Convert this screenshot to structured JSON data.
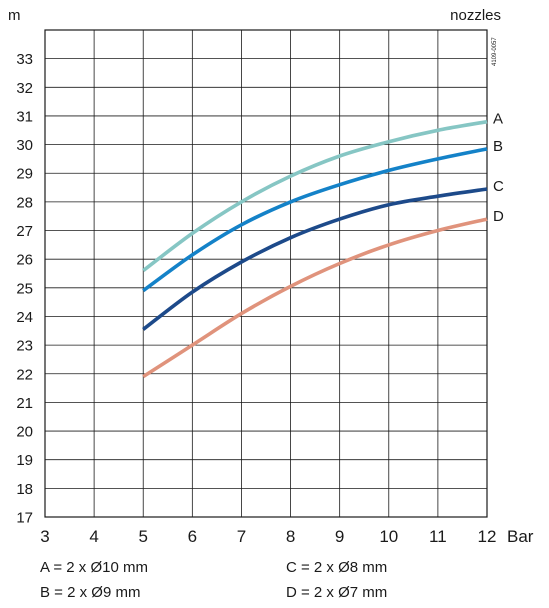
{
  "chart_data": {
    "type": "line",
    "ylabel": "m",
    "xlabel": "Bar",
    "legend_title": "nozzles",
    "code": "4109-0057",
    "xlim": [
      3,
      12
    ],
    "ylim": [
      17,
      34
    ],
    "x_ticks": [
      3,
      4,
      5,
      6,
      7,
      8,
      9,
      10,
      11,
      12
    ],
    "y_ticks": [
      17,
      18,
      19,
      20,
      21,
      22,
      23,
      24,
      25,
      26,
      27,
      28,
      29,
      30,
      31,
      32,
      33
    ],
    "grid": true,
    "series": [
      {
        "name": "A",
        "color": "#86c6c4",
        "x": [
          5,
          6,
          7,
          8,
          9,
          10,
          11,
          12
        ],
        "y": [
          25.6,
          26.9,
          28.0,
          28.9,
          29.6,
          30.1,
          30.5,
          30.8
        ]
      },
      {
        "name": "B",
        "color": "#1482c8",
        "x": [
          5,
          6,
          7,
          8,
          9,
          10,
          11,
          12
        ],
        "y": [
          24.9,
          26.15,
          27.2,
          28.0,
          28.6,
          29.1,
          29.5,
          29.85
        ]
      },
      {
        "name": "C",
        "color": "#1d4a8a",
        "x": [
          5,
          6,
          7,
          8,
          9,
          10,
          11,
          12
        ],
        "y": [
          23.55,
          24.85,
          25.9,
          26.75,
          27.4,
          27.9,
          28.2,
          28.45
        ]
      },
      {
        "name": "D",
        "color": "#e0937c",
        "x": [
          5,
          6,
          7,
          8,
          9,
          10,
          11,
          12
        ],
        "y": [
          21.9,
          23.0,
          24.1,
          25.05,
          25.85,
          26.5,
          27.0,
          27.4
        ]
      }
    ],
    "legend": {
      "a": "A = 2 x Ø10 mm",
      "b": "B = 2 x Ø9 mm",
      "c": "C = 2 x Ø8 mm",
      "d": "D = 2 x Ø7 mm"
    }
  }
}
